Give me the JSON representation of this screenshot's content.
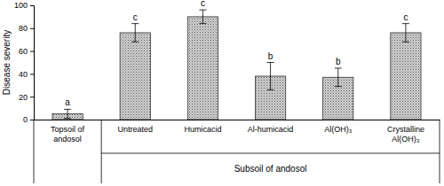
{
  "chart_data": {
    "type": "bar",
    "y_label": "Disease severity",
    "categories": [
      "Topsoil of andosol",
      "Untreated",
      "Humicacid",
      "Al-humicacid",
      "Al(OH)₃",
      "Crystalline Al(OH)₃"
    ],
    "values": [
      5,
      76,
      90,
      38,
      37,
      76
    ],
    "errors": [
      4,
      8,
      6,
      12,
      8,
      8
    ],
    "annotations": [
      "a",
      "c",
      "c",
      "b",
      "b",
      "c"
    ],
    "group": {
      "label": "Subsoil of andosol",
      "first": 1,
      "last": 5
    },
    "color": "#d4d4d4",
    "ylim": [
      0,
      100
    ],
    "yticks": [
      0,
      20,
      40,
      60,
      80,
      100
    ],
    "grid": false
  }
}
